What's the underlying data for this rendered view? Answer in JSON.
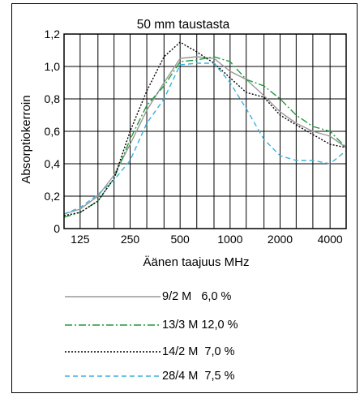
{
  "chart_data": {
    "type": "line",
    "title": "50 mm taustasta",
    "xlabel": "Äänen taajuus MHz",
    "ylabel": "Absorptiokerroin",
    "x_scale": "log",
    "xlim": [
      100,
      5000
    ],
    "ylim": [
      0,
      1.2
    ],
    "grid": true,
    "x_ticks": [
      {
        "value": 125,
        "label": "125"
      },
      {
        "value": 250,
        "label": "250"
      },
      {
        "value": 500,
        "label": "500"
      },
      {
        "value": 1000,
        "label": "1000"
      },
      {
        "value": 2000,
        "label": "2000"
      },
      {
        "value": 4000,
        "label": "4000"
      }
    ],
    "y_ticks": [
      {
        "value": 0,
        "label": "0"
      },
      {
        "value": 0.2,
        "label": "0,2"
      },
      {
        "value": 0.4,
        "label": "0,4"
      },
      {
        "value": 0.6,
        "label": "0,6"
      },
      {
        "value": 0.8,
        "label": "0,8"
      },
      {
        "value": 1.0,
        "label": "1,0"
      },
      {
        "value": 1.2,
        "label": "1,2"
      }
    ],
    "x": [
      100,
      125,
      160,
      200,
      250,
      315,
      400,
      500,
      630,
      800,
      1000,
      1250,
      1600,
      2000,
      2500,
      3150,
      4000,
      5000
    ],
    "series": [
      {
        "name": "9/2 M",
        "legend_label": "9/2 M   6,0 %",
        "color": "#999999",
        "dash": "",
        "values": [
          0.09,
          0.12,
          0.2,
          0.33,
          0.52,
          0.73,
          0.9,
          1.05,
          1.06,
          1.05,
          0.97,
          0.92,
          0.82,
          0.72,
          0.65,
          0.6,
          0.57,
          0.5
        ]
      },
      {
        "name": "13/3 M",
        "legend_label": "13/3 M 12,0 %",
        "color": "#1e9a3c",
        "dash": "9 3 2 3",
        "values": [
          0.07,
          0.1,
          0.17,
          0.31,
          0.55,
          0.76,
          0.88,
          1.03,
          1.04,
          1.06,
          1.03,
          0.92,
          0.88,
          0.8,
          0.7,
          0.63,
          0.6,
          0.5
        ]
      },
      {
        "name": "14/2 M",
        "legend_label": "14/2 M  7,0 %",
        "color": "#000000",
        "dash": "2 2",
        "values": [
          0.08,
          0.1,
          0.17,
          0.31,
          0.6,
          0.85,
          1.06,
          1.15,
          1.09,
          1.02,
          0.93,
          0.84,
          0.81,
          0.7,
          0.64,
          0.58,
          0.52,
          0.5
        ]
      },
      {
        "name": "28/4 M",
        "legend_label": "28/4 M  7,5 %",
        "color": "#3bb0df",
        "dash": "6 4",
        "values": [
          0.09,
          0.13,
          0.21,
          0.3,
          0.42,
          0.65,
          0.8,
          1.01,
          1.02,
          1.02,
          0.9,
          0.74,
          0.55,
          0.45,
          0.42,
          0.42,
          0.4,
          0.48
        ]
      }
    ]
  }
}
